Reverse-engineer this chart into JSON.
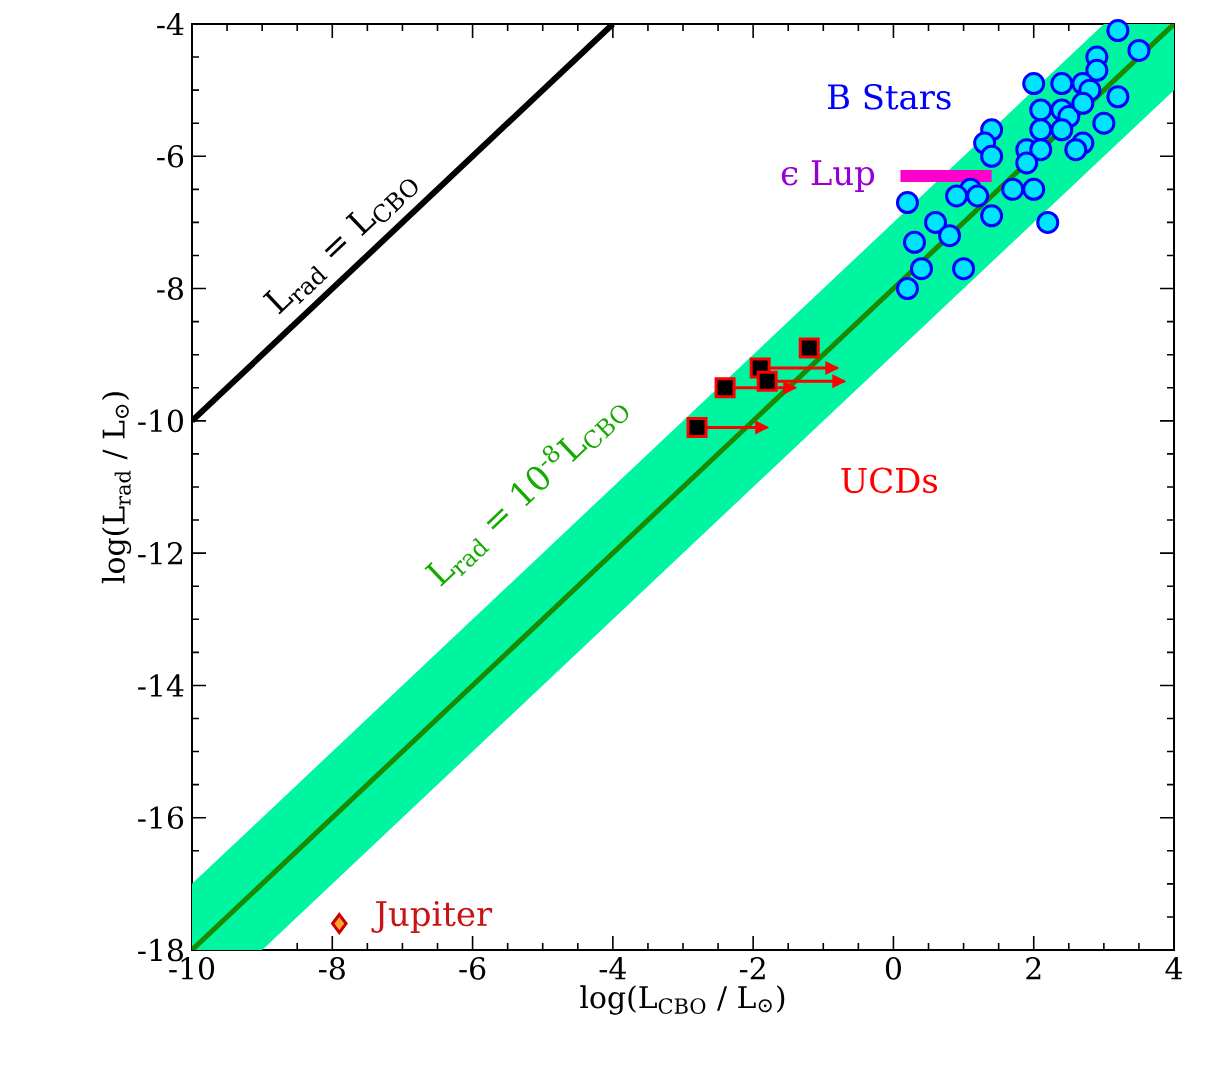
{
  "chart_data": {
    "type": "scatter",
    "xlabel": "log(L$_{CBO}$ / L$_{⊙}$)",
    "ylabel": "log(L$_{rad}$ / L$_{⊙}$)",
    "xlim": [
      -10,
      4
    ],
    "ylim": [
      -18,
      -4
    ],
    "xticks": [
      -10,
      -8,
      -6,
      -4,
      -2,
      0,
      2,
      4
    ],
    "yticks": [
      -18,
      -16,
      -14,
      -12,
      -10,
      -8,
      -6,
      -4
    ],
    "annotations": [
      {
        "text": "L$_{rad}$ = L$_{CBO}$",
        "x": -7.6,
        "y": -7.6
      },
      {
        "text": "L$_{rad}$ = 10$^{-8}$L$_{CBO}$",
        "x": -4.2,
        "y": -12.2
      }
    ],
    "series": [
      {
        "type": "line",
        "color": "#1a8a00",
        "x": [
          -10,
          -9,
          3,
          4
        ],
        "values": [
          -18,
          -17,
          -5,
          -4
        ],
        "lower": [
          -18,
          -18,
          -6,
          -5
        ],
        "upper": [
          -17,
          -16,
          -4,
          -4
        ]
      },
      {
        "type": "line",
        "color": "#000000",
        "x": [
          -10,
          -4
        ],
        "values": [
          -10,
          -4
        ]
      },
      {
        "type": "scatter",
        "name": "B Stars",
        "marker": "circle",
        "color": "#00e5ff",
        "x": [
          3.2,
          3.5,
          2.9,
          2.9,
          2.0,
          2.4,
          2.7,
          2.8,
          3.2,
          2.1,
          2.4,
          2.5,
          3.0,
          2.7,
          2.1,
          2.4,
          1.4,
          1.3,
          1.9,
          2.1,
          2.7,
          2.6,
          1.4,
          1.9,
          1.7,
          2.0,
          1.1,
          1.2,
          0.9,
          1.4,
          0.2,
          0.6,
          0.8,
          0.3,
          2.2,
          0.4,
          1.0,
          0.2
        ],
        "values": [
          -4.1,
          -4.4,
          -4.5,
          -4.7,
          -4.9,
          -4.9,
          -4.9,
          -5.0,
          -5.1,
          -5.3,
          -5.3,
          -5.4,
          -5.5,
          -5.2,
          -5.6,
          -5.6,
          -5.6,
          -5.8,
          -5.9,
          -5.9,
          -5.8,
          -5.9,
          -6.0,
          -6.1,
          -6.5,
          -6.5,
          -6.5,
          -6.6,
          -6.6,
          -6.9,
          -6.7,
          -7.0,
          -7.2,
          -7.3,
          -7.0,
          -7.7,
          -7.7,
          -8.0
        ]
      },
      {
        "type": "line",
        "name": "ϵ Lup",
        "color": "#ff00cc",
        "x": [
          0.1,
          1.4
        ],
        "values": [
          -6.3,
          -6.3
        ]
      },
      {
        "type": "scatter",
        "name": "UCDs",
        "marker": "square",
        "color": "#000000",
        "x": [
          -2.8,
          -2.4,
          -1.9,
          -1.8,
          -1.2
        ],
        "values": [
          -10.1,
          -9.5,
          -9.2,
          -9.4,
          -8.9
        ],
        "xerrors": [
          [
            -2.8,
            -1.8
          ],
          [
            -2.4,
            -1.4
          ],
          [
            -1.9,
            -0.8
          ],
          [
            -1.8,
            -0.7
          ],
          null
        ]
      },
      {
        "type": "scatter",
        "name": "Jupiter",
        "marker": "diamond",
        "color": "#ffa030",
        "x": [
          -7.9
        ],
        "values": [
          -17.6
        ]
      }
    ]
  }
}
